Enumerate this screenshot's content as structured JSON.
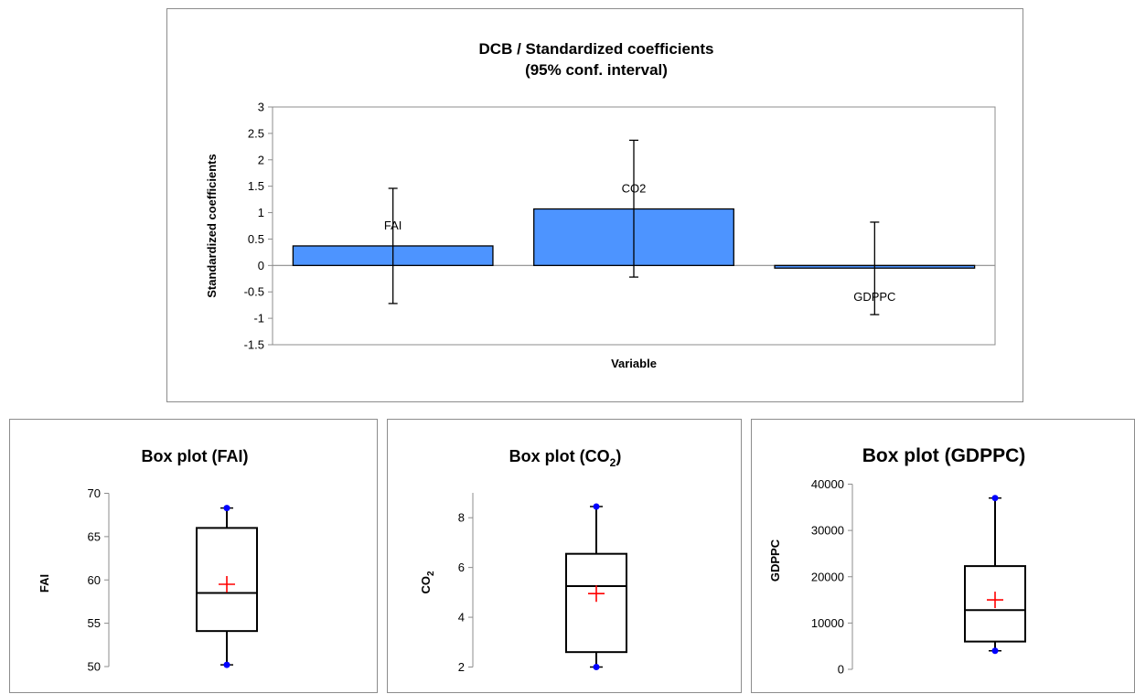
{
  "chart_data": [
    {
      "type": "bar",
      "title_line1": "DCB / Standardized coefficients",
      "title_line2": "(95% conf. interval)",
      "xlabel": "Variable",
      "ylabel": "Standardized coefficients",
      "ylim": [
        -1.5,
        3
      ],
      "yticks": [
        "3",
        "2.5",
        "2",
        "1.5",
        "1",
        "0.5",
        "0",
        "-0.5",
        "-1",
        "-1.5"
      ],
      "categories": [
        "FAI",
        "CO2",
        "GDPPC"
      ],
      "values": [
        0.37,
        1.07,
        -0.05
      ],
      "ci_lower": [
        -0.72,
        -0.22,
        -0.93
      ],
      "ci_upper": [
        1.46,
        2.37,
        0.82
      ],
      "bar_color": "#4d94ff",
      "legend": "none"
    },
    {
      "type": "box",
      "title": "Box plot (FAI)",
      "ylabel": "FAI",
      "ylim": [
        50,
        70
      ],
      "yticks": [
        "70",
        "65",
        "60",
        "55",
        "50"
      ],
      "min": 50.2,
      "q1": 54.1,
      "median": 58.5,
      "q3": 66.0,
      "max": 68.3,
      "mean": 59.5
    },
    {
      "type": "box",
      "title_main": "Box plot (CO",
      "title_sub": "2",
      "title_end": ")",
      "ylabel_main": "CO",
      "ylabel_sub": "2",
      "ylim": [
        2,
        9
      ],
      "yticks": [
        "8",
        "6",
        "4",
        "2"
      ],
      "min": 2.0,
      "q1": 2.6,
      "median": 5.25,
      "q3": 6.55,
      "max": 8.45,
      "mean": 4.95
    },
    {
      "type": "box",
      "title": "Box plot (GDPPC)",
      "ylabel": "GDPPC",
      "ylim": [
        0,
        40000
      ],
      "yticks": [
        "40000",
        "30000",
        "20000",
        "10000",
        "0"
      ],
      "min": 4000,
      "q1": 6000,
      "median": 12800,
      "q3": 22300,
      "max": 37000,
      "mean": 15000
    }
  ],
  "colors": {
    "whisker_marker": "#0000ff",
    "mean_marker": "#ff0000"
  }
}
